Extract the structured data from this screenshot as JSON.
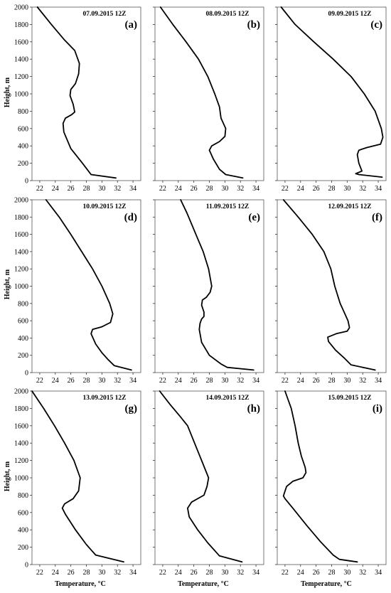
{
  "figure": {
    "y_axis_label": "Height,  m",
    "x_axis_label": "Temperature,  °C"
  },
  "chart_data": [
    {
      "type": "line",
      "title": "07.09.2015  12Z",
      "label": "(a)",
      "xlim": [
        21,
        35
      ],
      "ylim": [
        0,
        2000
      ],
      "xticks": [
        22,
        24,
        26,
        28,
        30,
        32,
        34
      ],
      "yticks": [
        0,
        200,
        400,
        600,
        800,
        1000,
        1200,
        1400,
        1600,
        1800,
        2000
      ],
      "x": [
        21.7,
        23.5,
        25.2,
        26.5,
        27.1,
        27.0,
        26.6,
        26.0,
        25.9,
        26.3,
        26.5,
        26.1,
        25.3,
        25.0,
        25.1,
        26.0,
        27.5,
        28.6,
        31.8
      ],
      "y": [
        2000,
        1800,
        1620,
        1500,
        1350,
        1230,
        1120,
        1050,
        980,
        880,
        790,
        760,
        720,
        660,
        560,
        370,
        200,
        70,
        30
      ]
    },
    {
      "type": "line",
      "title": "08.09.2015  12Z",
      "label": "(b)",
      "xlim": [
        21,
        35
      ],
      "ylim": [
        0,
        2000
      ],
      "xticks": [
        22,
        24,
        26,
        28,
        30,
        32,
        34
      ],
      "yticks": [
        0,
        200,
        400,
        600,
        800,
        1000,
        1200,
        1400,
        1600,
        1800,
        2000
      ],
      "x": [
        21.7,
        23.3,
        25.0,
        26.6,
        27.8,
        28.7,
        29.3,
        29.5,
        29.6,
        30.1,
        30.0,
        29.3,
        28.3,
        28.0,
        28.5,
        29.3,
        30.1,
        32.3
      ],
      "y": [
        2000,
        1800,
        1600,
        1400,
        1200,
        1000,
        850,
        720,
        700,
        600,
        510,
        450,
        400,
        350,
        250,
        130,
        70,
        30
      ]
    },
    {
      "type": "line",
      "title": "09.09.2015  12Z",
      "label": "(c)",
      "xlim": [
        21,
        35
      ],
      "ylim": [
        0,
        2000
      ],
      "xticks": [
        22,
        24,
        26,
        28,
        30,
        32,
        34
      ],
      "yticks": [
        0,
        200,
        400,
        600,
        800,
        1000,
        1200,
        1400,
        1600,
        1800,
        2000
      ],
      "x": [
        21.5,
        23.3,
        25.7,
        28.2,
        30.5,
        32.2,
        33.6,
        34.4,
        34.6,
        34.3,
        32.5,
        31.5,
        31.3,
        31.5,
        31.9,
        31.1,
        31.5,
        34.5
      ],
      "y": [
        2000,
        1800,
        1600,
        1400,
        1200,
        1000,
        800,
        600,
        500,
        420,
        380,
        350,
        300,
        200,
        110,
        80,
        70,
        40
      ]
    },
    {
      "type": "line",
      "title": "10.09.2015  12Z",
      "label": "(d)",
      "xlim": [
        21,
        35
      ],
      "ylim": [
        0,
        2000
      ],
      "xticks": [
        22,
        24,
        26,
        28,
        30,
        32,
        34
      ],
      "yticks": [
        0,
        200,
        400,
        600,
        800,
        1000,
        1200,
        1400,
        1600,
        1800,
        2000
      ],
      "x": [
        22.8,
        24.5,
        26.0,
        27.4,
        28.8,
        30.0,
        31.0,
        31.4,
        31.1,
        30.0,
        28.8,
        28.6,
        29.2,
        30.0,
        30.8,
        31.6,
        33.8
      ],
      "y": [
        2000,
        1800,
        1600,
        1400,
        1200,
        1000,
        800,
        680,
        580,
        530,
        500,
        450,
        330,
        230,
        150,
        80,
        30
      ]
    },
    {
      "type": "line",
      "title": "11.09.2015  12Z",
      "label": "(e)",
      "xlim": [
        21,
        35
      ],
      "ylim": [
        0,
        2000
      ],
      "xticks": [
        22,
        24,
        26,
        28,
        30,
        32,
        34
      ],
      "yticks": [
        0,
        200,
        400,
        600,
        800,
        1000,
        1200,
        1400,
        1600,
        1800,
        2000
      ],
      "x": [
        24.3,
        25.1,
        25.8,
        26.5,
        27.2,
        27.9,
        28.3,
        28.1,
        27.6,
        27.1,
        27.0,
        27.3,
        27.3,
        27.0,
        26.8,
        26.7,
        27.0,
        28.0,
        29.5,
        30.3,
        33.7
      ],
      "y": [
        2000,
        1850,
        1700,
        1550,
        1400,
        1200,
        1000,
        930,
        870,
        840,
        780,
        700,
        650,
        620,
        570,
        500,
        350,
        200,
        100,
        60,
        30
      ]
    },
    {
      "type": "line",
      "title": "12.09.2015  12Z",
      "label": "(f)",
      "xlim": [
        21,
        35
      ],
      "ylim": [
        0,
        2000
      ],
      "xticks": [
        22,
        24,
        26,
        28,
        30,
        32,
        34
      ],
      "yticks": [
        0,
        200,
        400,
        600,
        800,
        1000,
        1200,
        1400,
        1600,
        1800,
        2000
      ],
      "x": [
        21.8,
        23.7,
        25.5,
        27.0,
        27.9,
        28.4,
        29.1,
        29.6,
        30.1,
        30.3,
        30.0,
        28.6,
        27.5,
        27.6,
        28.5,
        29.6,
        30.5,
        33.6
      ],
      "y": [
        2000,
        1800,
        1600,
        1400,
        1200,
        1000,
        800,
        700,
        600,
        520,
        480,
        450,
        410,
        360,
        260,
        170,
        90,
        30
      ]
    },
    {
      "type": "line",
      "title": "13.09.2015  12Z",
      "label": "(g)",
      "xlim": [
        21,
        35
      ],
      "ylim": [
        0,
        2000
      ],
      "xticks": [
        22,
        24,
        26,
        28,
        30,
        32,
        34
      ],
      "yticks": [
        0,
        200,
        400,
        600,
        800,
        1000,
        1200,
        1400,
        1600,
        1800,
        2000
      ],
      "x": [
        21.0,
        22.5,
        23.9,
        25.2,
        26.4,
        27.2,
        27.0,
        26.3,
        25.2,
        24.9,
        25.3,
        26.6,
        28.0,
        29.2,
        32.8
      ],
      "y": [
        2000,
        1800,
        1600,
        1400,
        1200,
        1000,
        850,
        760,
        700,
        650,
        580,
        400,
        230,
        110,
        30
      ]
    },
    {
      "type": "line",
      "title": "14.09.2015  12Z",
      "label": "(h)",
      "xlim": [
        21,
        35
      ],
      "ylim": [
        0,
        2000
      ],
      "xticks": [
        22,
        24,
        26,
        28,
        30,
        32,
        34
      ],
      "yticks": [
        0,
        200,
        400,
        600,
        800,
        1000,
        1200,
        1400,
        1600,
        1800,
        2000
      ],
      "x": [
        21.6,
        22.9,
        24.3,
        25.2,
        26.1,
        27.0,
        27.9,
        27.7,
        27.3,
        25.7,
        25.2,
        25.4,
        26.5,
        27.8,
        29.3,
        32.2
      ],
      "y": [
        2000,
        1850,
        1700,
        1600,
        1400,
        1200,
        1000,
        900,
        800,
        720,
        650,
        550,
        400,
        250,
        100,
        30
      ]
    },
    {
      "type": "line",
      "title": "15.09.2015  12Z",
      "label": "(i)",
      "xlim": [
        21,
        35
      ],
      "ylim": [
        0,
        2000
      ],
      "xticks": [
        22,
        24,
        26,
        28,
        30,
        32,
        34
      ],
      "yticks": [
        0,
        200,
        400,
        600,
        800,
        1000,
        1200,
        1400,
        1600,
        1800,
        2000
      ],
      "x": [
        22.0,
        22.8,
        23.3,
        23.7,
        24.1,
        24.6,
        24.7,
        24.3,
        23.0,
        22.2,
        21.9,
        21.8,
        22.0,
        23.0,
        24.8,
        26.6,
        28.2,
        29.0,
        31.3
      ],
      "y": [
        2000,
        1800,
        1600,
        1400,
        1250,
        1120,
        1060,
        1000,
        960,
        900,
        820,
        790,
        760,
        650,
        450,
        260,
        110,
        60,
        30
      ]
    }
  ]
}
